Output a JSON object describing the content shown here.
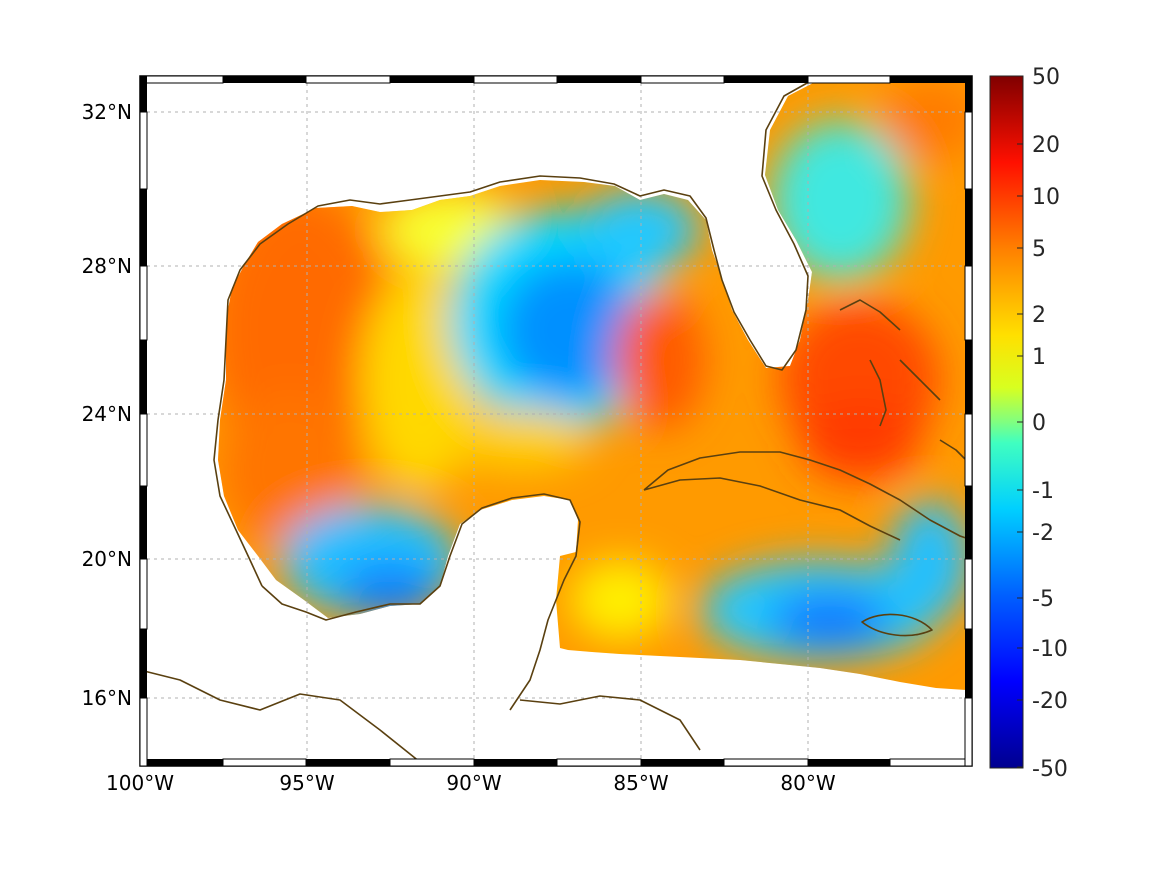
{
  "map": {
    "x_ticks": [
      "100°W",
      "95°W",
      "90°W",
      "85°W",
      "80°W"
    ],
    "y_ticks": [
      "32°N",
      "28°N",
      "24°N",
      "20°N",
      "16°N"
    ],
    "lon_range": [
      -100,
      -75
    ],
    "lat_range": [
      14.5,
      33
    ],
    "grid": true,
    "colormap": "jet",
    "colors": {
      "coastline": "#5a4010",
      "grid": "#b0b0b0",
      "land": "#ffffff",
      "frame_dark": "#000000",
      "frame_light": "#ffffff"
    }
  },
  "colorbar": {
    "ticks": [
      "50",
      "20",
      "10",
      "5",
      "2",
      "1",
      "0",
      "-1",
      "-2",
      "-5",
      "-10",
      "-20",
      "-50"
    ],
    "range": [
      -50,
      50
    ],
    "scale": "symmetric-log"
  }
}
